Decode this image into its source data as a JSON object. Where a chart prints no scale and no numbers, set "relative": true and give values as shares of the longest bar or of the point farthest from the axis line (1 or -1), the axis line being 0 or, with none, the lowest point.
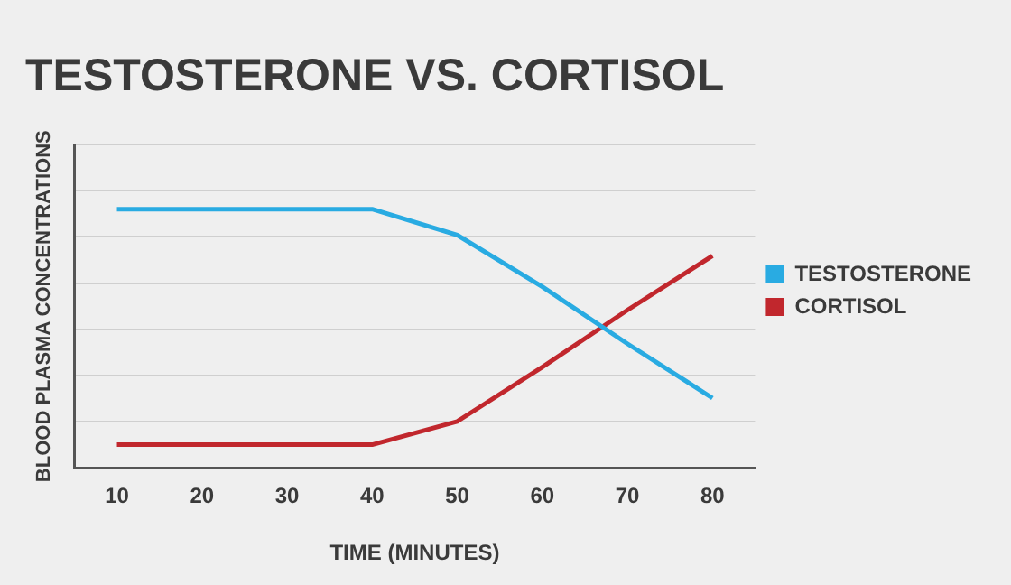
{
  "chart_data": {
    "type": "line",
    "title": "TESTOSTERONE VS. CORTISOL",
    "xlabel": "TIME (MINUTES)",
    "ylabel": "BLOOD PLASMA CONCENTRATIONS",
    "x": [
      10,
      20,
      30,
      40,
      50,
      60,
      70,
      80
    ],
    "xlim": [
      5,
      85
    ],
    "xticks": [
      10,
      20,
      30,
      40,
      50,
      60,
      70,
      80
    ],
    "relative": true,
    "series": [
      {
        "name": "TESTOSTERONE",
        "color": "#29abe2",
        "values": [
          1,
          1,
          1,
          1,
          0.9,
          0.7,
          0.48,
          0.27
        ]
      },
      {
        "name": "CORTISOL",
        "color": "#c1272d",
        "values": [
          0.09,
          0.09,
          0.09,
          0.09,
          0.18,
          0.39,
          0.61,
          0.82
        ]
      }
    ],
    "grid": "y",
    "legend": "right",
    "marker": "none",
    "line_style": "solid"
  }
}
